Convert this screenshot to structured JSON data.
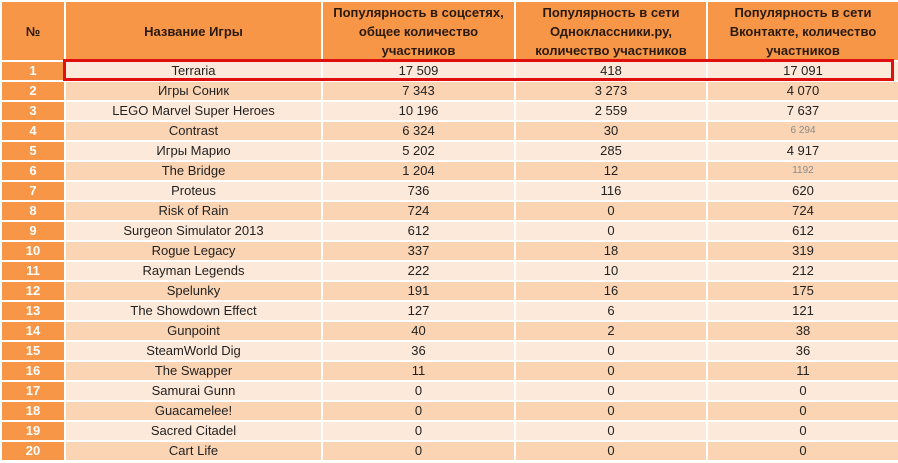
{
  "headers": [
    "№",
    "Название Игры",
    "Популярность в соцсетях, общее количество участников",
    "Популярность в сети Одноклассники.ру, количество участников",
    "Популярность в сети Вконтакте, количество участников"
  ],
  "rows": [
    [
      "1",
      "Terraria",
      "17 509",
      "418",
      "17 091"
    ],
    [
      "2",
      "Игры Соник",
      "7 343",
      "3 273",
      "4 070"
    ],
    [
      "3",
      "LEGO Marvel Super Heroes",
      "10 196",
      "2 559",
      "7 637"
    ],
    [
      "4",
      "Contrast",
      "6 324",
      "30",
      "6 294"
    ],
    [
      "5",
      "Игры Марио",
      "5 202",
      "285",
      "4 917"
    ],
    [
      "6",
      "The Bridge",
      "1 204",
      "12",
      "1192"
    ],
    [
      "7",
      "Proteus",
      "736",
      "116",
      "620"
    ],
    [
      "8",
      "Risk of Rain",
      "724",
      "0",
      "724"
    ],
    [
      "9",
      "Surgeon Simulator 2013",
      "612",
      "0",
      "612"
    ],
    [
      "10",
      "Rogue Legacy",
      "337",
      "18",
      "319"
    ],
    [
      "11",
      "Rayman Legends",
      "222",
      "10",
      "212"
    ],
    [
      "12",
      "Spelunky",
      "191",
      "16",
      "175"
    ],
    [
      "13",
      "The Showdown Effect",
      "127",
      "6",
      "121"
    ],
    [
      "14",
      "Gunpoint",
      "40",
      "2",
      "38"
    ],
    [
      "15",
      "SteamWorld Dig",
      "36",
      "0",
      "36"
    ],
    [
      "16",
      "The Swapper",
      "11",
      "0",
      "11"
    ],
    [
      "17",
      "Samurai Gunn",
      "0",
      "0",
      "0"
    ],
    [
      "18",
      "Guacamelee!",
      "0",
      "0",
      "0"
    ],
    [
      "19",
      "Sacred Citadel",
      "0",
      "0",
      "0"
    ],
    [
      "20",
      "Cart Life",
      "0",
      "0",
      "0"
    ]
  ],
  "faded_cells": [
    [
      3,
      4
    ],
    [
      5,
      4
    ]
  ],
  "highlighted_row": 0
}
